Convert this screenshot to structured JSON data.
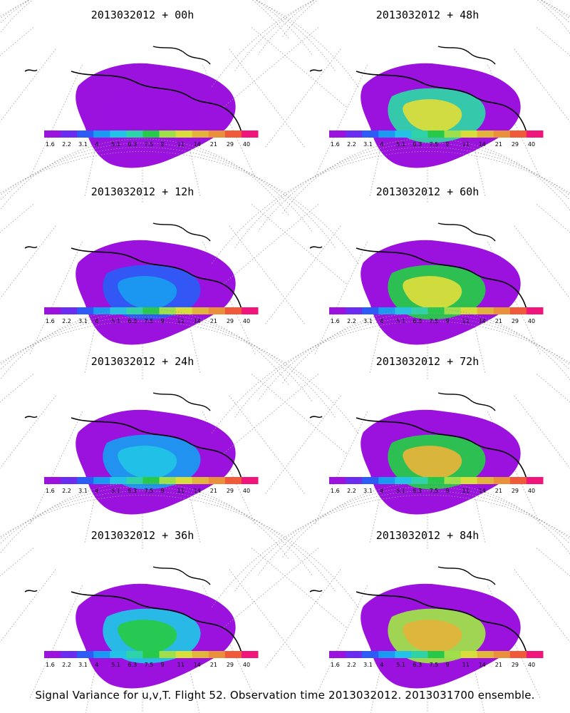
{
  "caption": "Signal Variance for u,v,T. Flight 52. Observation time 2013032012. 2013031700 ensemble.",
  "legend": {
    "labels": [
      "1.6",
      "2.2",
      "3.1",
      "4",
      "5.1",
      "6.3",
      "7.5",
      "9",
      "11",
      "14",
      "21",
      "29",
      "40"
    ],
    "colors": [
      "#9b12df",
      "#6a2cf0",
      "#2c5cf5",
      "#1a9af0",
      "#22c3e6",
      "#2fd3a8",
      "#27c94a",
      "#9fe04a",
      "#d9dd3c",
      "#e3b43b",
      "#ea8f3c",
      "#f05a3a",
      "#f0157a"
    ]
  },
  "panels": [
    {
      "title": "2013032012 + 00h",
      "level": 0.05,
      "core": "purple"
    },
    {
      "title": "2013032012 + 12h",
      "level": 0.2,
      "core": "blue"
    },
    {
      "title": "2013032012 + 24h",
      "level": 0.35,
      "core": "cyan"
    },
    {
      "title": "2013032012 + 36h",
      "level": 0.45,
      "core": "green"
    },
    {
      "title": "2013032012 + 48h",
      "level": 0.55,
      "core": "yellow"
    },
    {
      "title": "2013032012 + 60h",
      "level": 0.62,
      "core": "yellow"
    },
    {
      "title": "2013032012 + 72h",
      "level": 0.7,
      "core": "orange"
    },
    {
      "title": "2013032012 + 84h",
      "level": 0.78,
      "core": "orange"
    }
  ]
}
